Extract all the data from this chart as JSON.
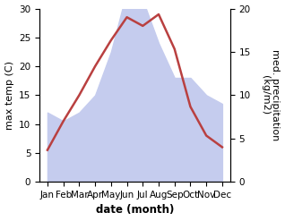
{
  "months": [
    "Jan",
    "Feb",
    "Mar",
    "Apr",
    "May",
    "Jun",
    "Jul",
    "Aug",
    "Sep",
    "Oct",
    "Nov",
    "Dec"
  ],
  "x": [
    1,
    2,
    3,
    4,
    5,
    6,
    7,
    8,
    9,
    10,
    11,
    12
  ],
  "temperature": [
    5.5,
    10.5,
    15.0,
    20.0,
    24.5,
    28.5,
    27.0,
    29.0,
    23.0,
    13.0,
    8.0,
    6.0
  ],
  "precipitation": [
    8.0,
    7.0,
    8.0,
    10.0,
    15.0,
    22.0,
    21.0,
    16.0,
    12.0,
    12.0,
    10.0,
    9.0
  ],
  "temp_color": "#b94040",
  "precip_fill_color": "#c5ccee",
  "temp_ylim": [
    0,
    30
  ],
  "precip_ylim": [
    0,
    20
  ],
  "temp_yticks": [
    0,
    5,
    10,
    15,
    20,
    25,
    30
  ],
  "precip_yticks": [
    0,
    5,
    10,
    15,
    20
  ],
  "temp_ylabel": "max temp (C)",
  "precip_ylabel": "med. precipitation\n(kg/m2)",
  "xlabel": "date (month)",
  "bg_color": "#ffffff",
  "label_fontsize": 8,
  "tick_fontsize": 7.5,
  "linewidth": 1.8
}
